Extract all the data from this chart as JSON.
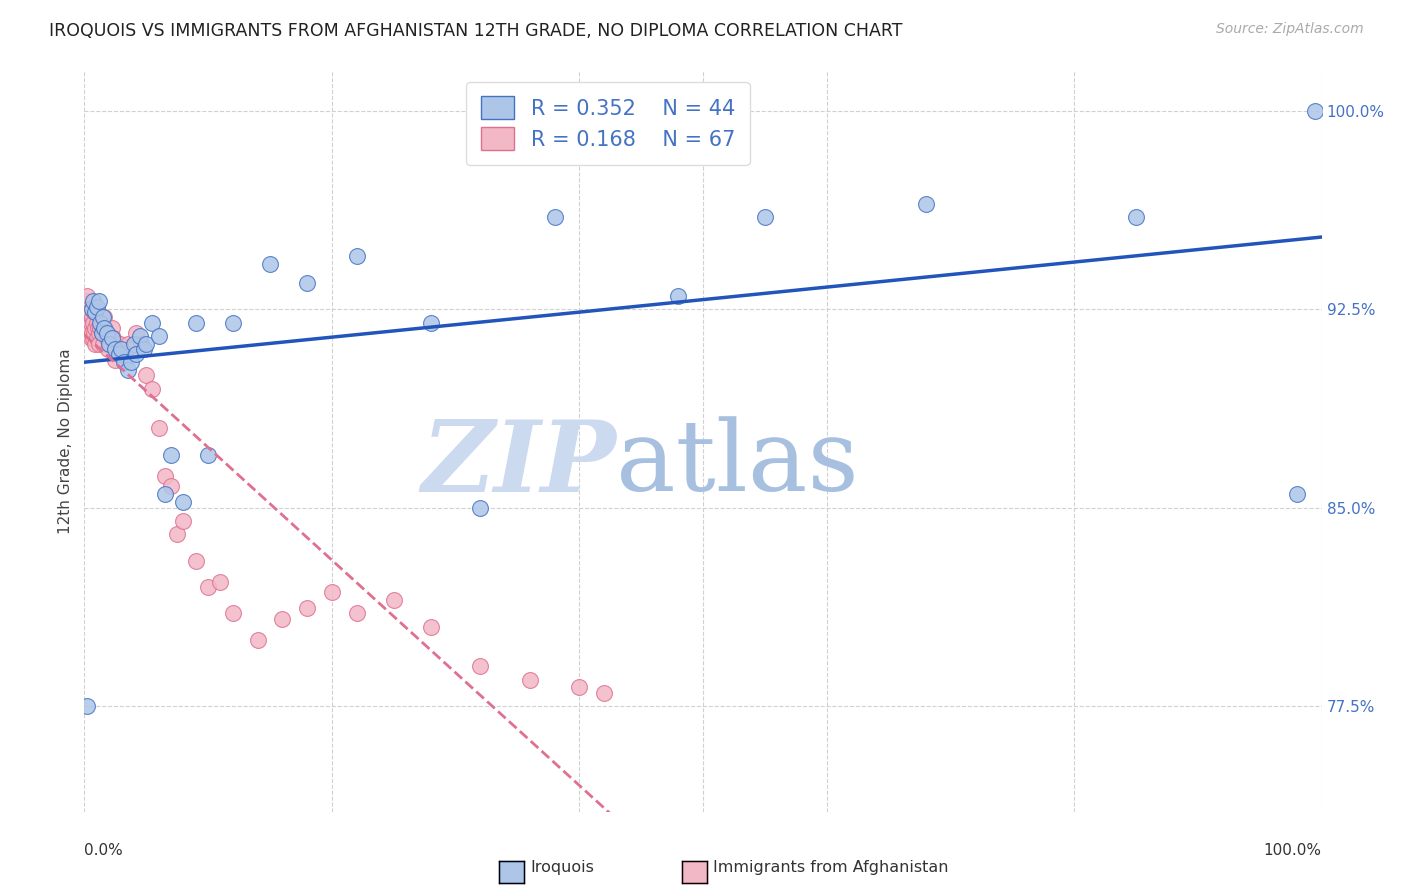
{
  "title": "IROQUOIS VS IMMIGRANTS FROM AFGHANISTAN 12TH GRADE, NO DIPLOMA CORRELATION CHART",
  "source": "Source: ZipAtlas.com",
  "ylabel": "12th Grade, No Diploma",
  "yticks": [
    0.775,
    0.85,
    0.925,
    1.0
  ],
  "ytick_labels": [
    "77.5%",
    "85.0%",
    "92.5%",
    "100.0%"
  ],
  "xmin": 0.0,
  "xmax": 1.0,
  "ymin": 0.735,
  "ymax": 1.015,
  "legend_r1": "R = 0.352",
  "legend_n1": "N = 44",
  "legend_r2": "R = 0.168",
  "legend_n2": "N = 67",
  "color_iroquois_fill": "#adc6e8",
  "color_iroquois_edge": "#4472c4",
  "color_afg_fill": "#f2b8c6",
  "color_afg_edge": "#e07090",
  "color_iroquois_line": "#2255bb",
  "color_afg_line": "#e07090",
  "color_ytick": "#4472c4",
  "iroquois_x": [
    0.002,
    0.006,
    0.007,
    0.009,
    0.01,
    0.012,
    0.013,
    0.014,
    0.015,
    0.016,
    0.018,
    0.02,
    0.022,
    0.025,
    0.028,
    0.03,
    0.032,
    0.035,
    0.038,
    0.04,
    0.042,
    0.045,
    0.048,
    0.05,
    0.055,
    0.06,
    0.065,
    0.07,
    0.08,
    0.09,
    0.1,
    0.12,
    0.15,
    0.18,
    0.22,
    0.28,
    0.32,
    0.38,
    0.48,
    0.55,
    0.68,
    0.85,
    0.98,
    0.995
  ],
  "iroquois_y": [
    0.775,
    0.925,
    0.928,
    0.924,
    0.926,
    0.928,
    0.92,
    0.916,
    0.922,
    0.918,
    0.916,
    0.912,
    0.914,
    0.91,
    0.908,
    0.91,
    0.905,
    0.902,
    0.905,
    0.912,
    0.908,
    0.915,
    0.91,
    0.912,
    0.92,
    0.915,
    0.855,
    0.87,
    0.852,
    0.92,
    0.87,
    0.92,
    0.942,
    0.935,
    0.945,
    0.92,
    0.85,
    0.96,
    0.93,
    0.96,
    0.965,
    0.96,
    0.855,
    1.0
  ],
  "afg_x": [
    0.001,
    0.002,
    0.003,
    0.003,
    0.004,
    0.004,
    0.005,
    0.005,
    0.006,
    0.006,
    0.007,
    0.007,
    0.008,
    0.008,
    0.009,
    0.009,
    0.01,
    0.01,
    0.011,
    0.011,
    0.012,
    0.012,
    0.013,
    0.013,
    0.014,
    0.014,
    0.015,
    0.015,
    0.016,
    0.016,
    0.017,
    0.018,
    0.019,
    0.02,
    0.021,
    0.022,
    0.023,
    0.025,
    0.027,
    0.029,
    0.032,
    0.035,
    0.038,
    0.042,
    0.046,
    0.05,
    0.055,
    0.06,
    0.065,
    0.07,
    0.075,
    0.08,
    0.09,
    0.1,
    0.11,
    0.12,
    0.14,
    0.16,
    0.18,
    0.2,
    0.22,
    0.25,
    0.28,
    0.32,
    0.36,
    0.4,
    0.42
  ],
  "afg_y": [
    0.928,
    0.93,
    0.916,
    0.925,
    0.918,
    0.924,
    0.92,
    0.914,
    0.916,
    0.922,
    0.914,
    0.92,
    0.916,
    0.924,
    0.918,
    0.912,
    0.92,
    0.914,
    0.918,
    0.924,
    0.916,
    0.912,
    0.918,
    0.922,
    0.916,
    0.92,
    0.912,
    0.918,
    0.916,
    0.922,
    0.918,
    0.914,
    0.91,
    0.915,
    0.912,
    0.918,
    0.914,
    0.906,
    0.91,
    0.912,
    0.908,
    0.912,
    0.91,
    0.916,
    0.912,
    0.9,
    0.895,
    0.88,
    0.862,
    0.858,
    0.84,
    0.845,
    0.83,
    0.82,
    0.822,
    0.81,
    0.8,
    0.808,
    0.812,
    0.818,
    0.81,
    0.815,
    0.805,
    0.79,
    0.785,
    0.782,
    0.78
  ]
}
